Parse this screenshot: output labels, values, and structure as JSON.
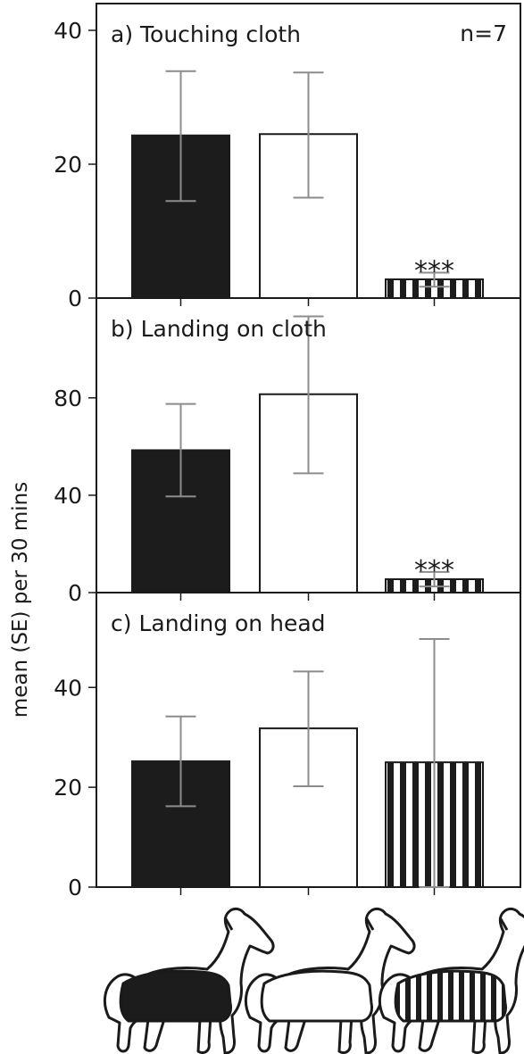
{
  "ylabel": "mean (SE) per 30 mins",
  "n_label": "n=7",
  "colors": {
    "black_bar": "#1c1c1c",
    "white_bar": "#ffffff",
    "error_bar": "#8c8c8c",
    "frame": "#1a1a1a"
  },
  "chart_data": [
    {
      "type": "bar",
      "title": "a) Touching cloth",
      "categories": [
        "black",
        "white",
        "striped"
      ],
      "values": [
        24.3,
        24.5,
        2.8
      ],
      "errors_low": [
        14.5,
        15.0,
        1.7
      ],
      "errors_high": [
        33.9,
        33.7,
        3.8
      ],
      "patterns": [
        "solid-black",
        "solid-white",
        "black-white-stripes"
      ],
      "ylim": [
        0,
        44
      ],
      "yticks": [
        "0",
        "20",
        "40"
      ],
      "ytick_values": [
        0,
        20,
        40
      ],
      "annotation": "***",
      "annotation_index": 2
    },
    {
      "type": "bar",
      "title": "b) Landing on cloth",
      "categories": [
        "black",
        "white",
        "striped"
      ],
      "values": [
        58.5,
        81.5,
        5.5
      ],
      "errors_low": [
        39.5,
        49.0,
        2.5
      ],
      "errors_high": [
        77.5,
        113.5,
        8.5
      ],
      "patterns": [
        "solid-black",
        "solid-white",
        "black-white-stripes"
      ],
      "ylim": [
        0,
        121
      ],
      "yticks": [
        "0",
        "40",
        "80"
      ],
      "ytick_values": [
        0,
        40,
        80
      ],
      "annotation": "***",
      "annotation_index": 2
    },
    {
      "type": "bar",
      "title": "c) Landing on head",
      "categories": [
        "black",
        "white",
        "striped"
      ],
      "values": [
        25.2,
        31.8,
        25.0
      ],
      "errors_low": [
        16.2,
        20.2,
        0.0
      ],
      "errors_high": [
        34.2,
        43.2,
        49.7
      ],
      "patterns": [
        "solid-black",
        "solid-white",
        "black-white-stripes"
      ],
      "ylim": [
        0,
        59
      ],
      "yticks": [
        "0",
        "20",
        "40"
      ],
      "ytick_values": [
        0,
        20,
        40
      ],
      "annotation": "",
      "annotation_index": null
    }
  ],
  "horse_icons": [
    {
      "name": "horse-black-blanket-icon",
      "blanket": "black"
    },
    {
      "name": "horse-white-blanket-icon",
      "blanket": "white"
    },
    {
      "name": "horse-striped-blanket-icon",
      "blanket": "striped"
    }
  ]
}
